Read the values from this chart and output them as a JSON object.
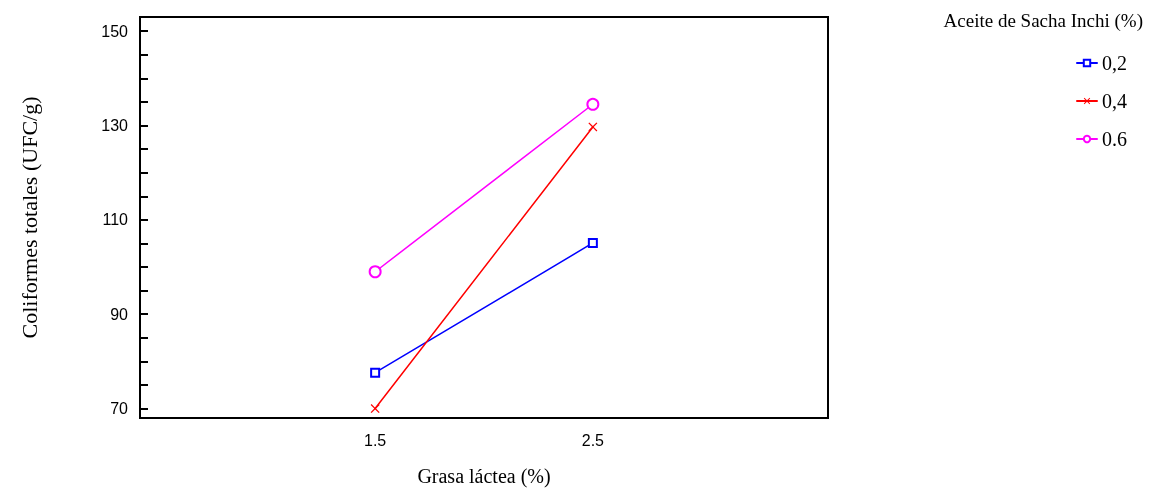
{
  "chart_data": {
    "type": "line",
    "xlabel": "Grasa láctea (%)",
    "ylabel": "Coliformes totales (UFC/g)",
    "legend_title": "Aceite de Sacha Inchi (%)",
    "legend": "top right",
    "grid": false,
    "x": [
      1.5,
      2.5
    ],
    "xlim": [
      0.42,
      3.58
    ],
    "xticks": [
      1.5,
      2.5
    ],
    "ylim": [
      68,
      153
    ],
    "yticks": [
      70,
      {
        "value": 75,
        "label": null
      },
      {
        "value": 80,
        "label": null
      },
      {
        "value": 85,
        "label": null
      },
      90,
      {
        "value": 95,
        "label": null
      },
      {
        "value": 100,
        "label": null
      },
      {
        "value": 105,
        "label": null
      },
      110,
      {
        "value": 115,
        "label": null
      },
      {
        "value": 120,
        "label": null
      },
      {
        "value": 125,
        "label": null
      },
      130,
      {
        "value": 135,
        "label": null
      },
      {
        "value": 140,
        "label": null
      },
      {
        "value": 145,
        "label": null
      },
      150
    ],
    "series": [
      {
        "name": "0,2",
        "color": "#0000ff",
        "marker": "square",
        "values": [
          77.6,
          105.1
        ]
      },
      {
        "name": "0,4",
        "color": "#ff0000",
        "marker": "cross",
        "values": [
          70,
          129.7
        ]
      },
      {
        "name": "0.6",
        "color": "#ff00ff",
        "marker": "circle",
        "values": [
          99,
          134.5
        ]
      }
    ]
  }
}
